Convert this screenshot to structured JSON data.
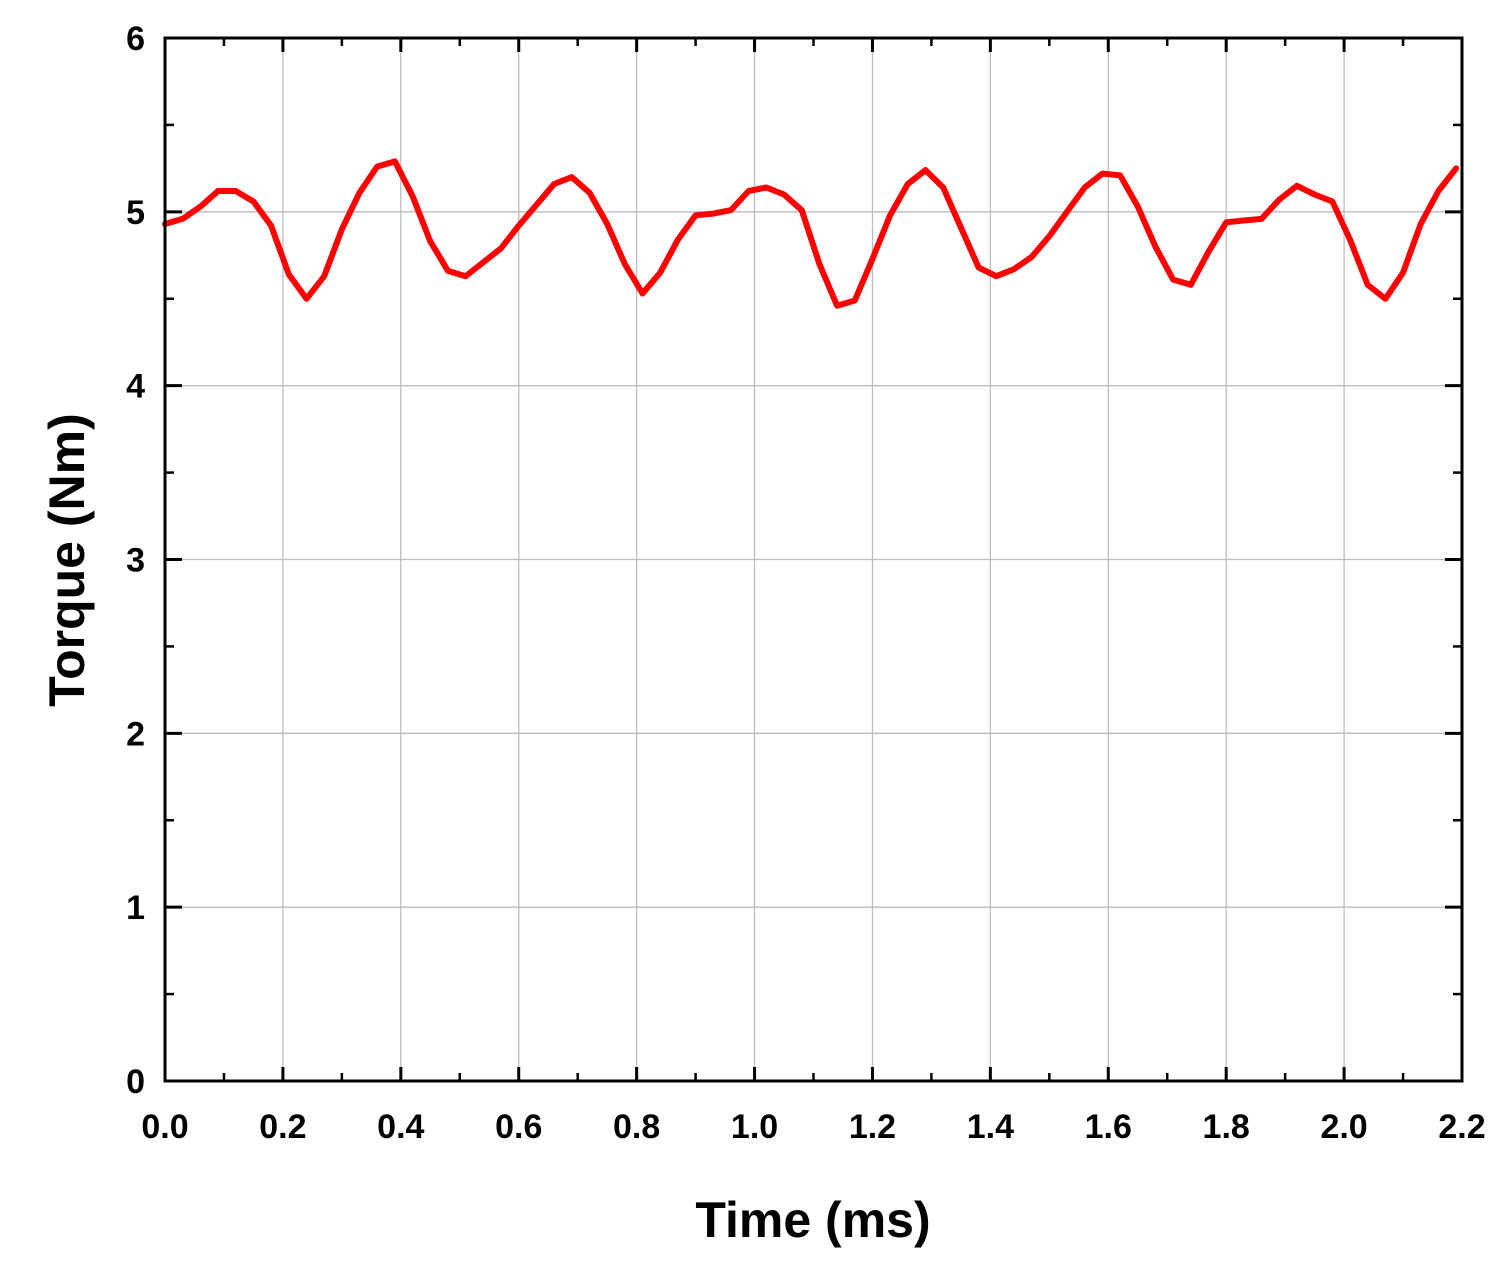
{
  "chart_data": {
    "type": "line",
    "xlabel": "Time (ms)",
    "ylabel": "Torque (Nm)",
    "xlim": [
      0,
      2.2
    ],
    "ylim": [
      0,
      6
    ],
    "x_ticks": [
      "0.0",
      "0.2",
      "0.4",
      "0.6",
      "0.8",
      "1.0",
      "1.2",
      "1.4",
      "1.6",
      "1.8",
      "2.0",
      "2.2"
    ],
    "y_ticks": [
      "0",
      "1",
      "2",
      "3",
      "4",
      "5",
      "6"
    ],
    "grid": true,
    "line_color": "#ff0000",
    "series": [
      {
        "x": [
          0.0,
          0.03,
          0.06,
          0.09,
          0.12,
          0.15,
          0.18,
          0.21,
          0.24,
          0.27,
          0.3,
          0.33,
          0.36,
          0.39,
          0.42,
          0.45,
          0.48,
          0.51,
          0.54,
          0.57,
          0.6,
          0.63,
          0.66,
          0.69,
          0.72,
          0.75,
          0.78,
          0.81,
          0.84,
          0.87,
          0.9,
          0.93,
          0.96,
          0.99,
          1.02,
          1.05,
          1.08,
          1.11,
          1.14,
          1.17,
          1.2,
          1.23,
          1.26,
          1.29,
          1.32,
          1.35,
          1.38,
          1.41,
          1.44,
          1.47,
          1.5,
          1.53,
          1.56,
          1.59,
          1.62,
          1.65,
          1.68,
          1.71,
          1.74,
          1.77,
          1.8,
          1.83,
          1.86,
          1.89,
          1.92,
          1.95,
          1.98,
          2.01,
          2.04,
          2.07,
          2.1,
          2.13,
          2.16,
          2.19
        ],
        "values": [
          4.93,
          4.96,
          5.03,
          5.12,
          5.12,
          5.06,
          4.92,
          4.64,
          4.5,
          4.63,
          4.9,
          5.11,
          5.26,
          5.29,
          5.09,
          4.83,
          4.66,
          4.63,
          4.71,
          4.79,
          4.92,
          5.04,
          5.16,
          5.2,
          5.11,
          4.93,
          4.7,
          4.53,
          4.65,
          4.84,
          4.98,
          4.99,
          5.01,
          5.12,
          5.14,
          5.1,
          5.01,
          4.7,
          4.46,
          4.49,
          4.73,
          4.98,
          5.16,
          5.24,
          5.14,
          4.91,
          4.68,
          4.63,
          4.67,
          4.74,
          4.86,
          5.0,
          5.14,
          5.22,
          5.21,
          5.03,
          4.8,
          4.61,
          4.58,
          4.77,
          4.94,
          4.95,
          4.96,
          5.07,
          5.15,
          5.1,
          5.06,
          4.84,
          4.58,
          4.5,
          4.65,
          4.93,
          5.12,
          5.25
        ]
      }
    ]
  }
}
